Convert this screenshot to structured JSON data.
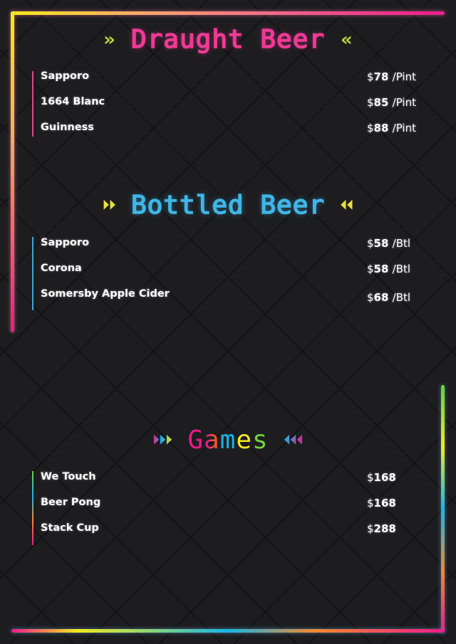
{
  "sections": [
    {
      "title": "Draught Beer",
      "title_color": "#ee3a95",
      "arrow_color": "#b5d934",
      "arrow_left": "»",
      "arrow_right": "«",
      "items": [
        {
          "name": "Sapporo",
          "price": "78",
          "unit": "/Pint"
        },
        {
          "name": "1664 Blanc",
          "price": "85",
          "unit": "/Pint"
        },
        {
          "name": "Guinness",
          "price": "88",
          "unit": "/Pint"
        }
      ]
    },
    {
      "title": "Bottled Beer",
      "title_color": "#3fb6e6",
      "arrow_color": "#e6e23a",
      "arrow_left": "⏵⏵",
      "arrow_right": "⏴⏴",
      "items": [
        {
          "name": "Sapporo",
          "price": "58",
          "unit": "/Btl"
        },
        {
          "name": "Corona",
          "price": "58",
          "unit": "/Btl"
        },
        {
          "name": "Somersby Apple Cider",
          "price": "68",
          "unit": "/Btl"
        }
      ]
    },
    {
      "title": "Games",
      "title_color": "multicolor",
      "arrow_left": "⏵⏵⏵",
      "arrow_right": "⏴⏴⏴",
      "items": [
        {
          "name": "We Touch",
          "price": "168"
        },
        {
          "name": "Beer Pong",
          "price": "168"
        },
        {
          "name": "Stack Cup",
          "price": "288"
        }
      ]
    }
  ],
  "currency": "$"
}
